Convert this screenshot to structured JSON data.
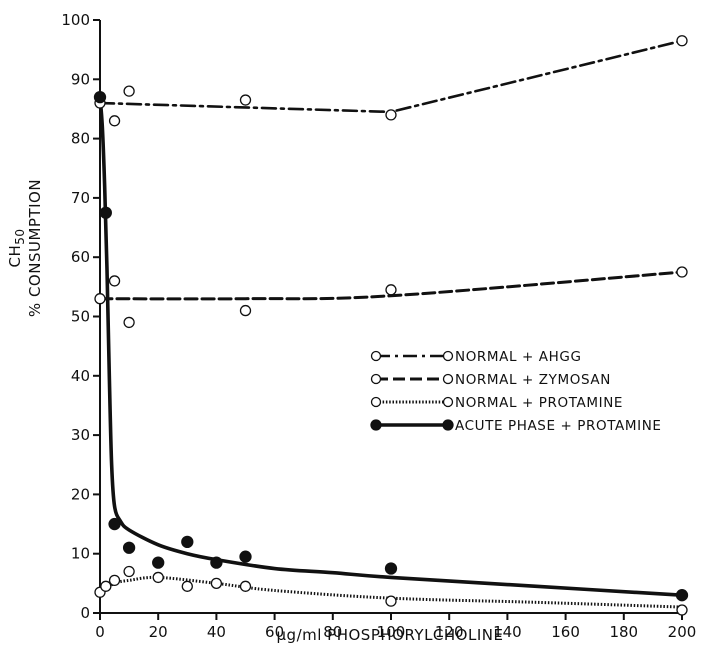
{
  "chart_data": {
    "type": "scatter",
    "xlabel": "μg/ml PHOSPHORYLCHOLINE",
    "ylabel_line1": "CH",
    "ylabel_sub": "50",
    "ylabel_line2": "% CONSUMPTION",
    "xlim": [
      0,
      200
    ],
    "ylim": [
      0,
      100
    ],
    "xticks": [
      0,
      20,
      40,
      60,
      80,
      100,
      120,
      140,
      160,
      180,
      200
    ],
    "yticks": [
      0,
      10,
      20,
      30,
      40,
      50,
      60,
      70,
      80,
      90,
      100
    ],
    "legend_position": "center-right",
    "series": [
      {
        "name": "NORMAL + AHGG",
        "line_style": "dash-dot",
        "marker": "open-circle",
        "points": [
          [
            0,
            86
          ],
          [
            5,
            83
          ],
          [
            10,
            88
          ],
          [
            50,
            86.5
          ],
          [
            100,
            84
          ],
          [
            200,
            96.5
          ]
        ],
        "curve": [
          [
            0,
            86
          ],
          [
            100,
            84.5
          ],
          [
            200,
            96.5
          ]
        ]
      },
      {
        "name": "NORMAL + ZYMOSAN",
        "line_style": "dashed",
        "marker": "open-circle",
        "points": [
          [
            0,
            53
          ],
          [
            5,
            56
          ],
          [
            10,
            49
          ],
          [
            50,
            51
          ],
          [
            100,
            54.5
          ],
          [
            200,
            57.5
          ]
        ],
        "curve": [
          [
            0,
            53
          ],
          [
            50,
            53
          ],
          [
            100,
            53.5
          ],
          [
            200,
            57.5
          ]
        ]
      },
      {
        "name": "NORMAL + PROTAMINE",
        "line_style": "dotted",
        "marker": "open-circle",
        "points": [
          [
            0,
            3.5
          ],
          [
            2,
            4.5
          ],
          [
            5,
            5.5
          ],
          [
            10,
            7
          ],
          [
            20,
            6
          ],
          [
            30,
            4.5
          ],
          [
            40,
            5
          ],
          [
            50,
            4.5
          ],
          [
            100,
            2
          ],
          [
            200,
            0.5
          ]
        ],
        "curve": [
          [
            0,
            3.5
          ],
          [
            5,
            5
          ],
          [
            10,
            5.5
          ],
          [
            20,
            6
          ],
          [
            40,
            5
          ],
          [
            60,
            3.8
          ],
          [
            100,
            2.5
          ],
          [
            150,
            1.8
          ],
          [
            200,
            1
          ]
        ]
      },
      {
        "name": "ACUTE PHASE + PROTAMINE",
        "line_style": "solid",
        "marker": "filled-circle",
        "points": [
          [
            0,
            87
          ],
          [
            2,
            67.5
          ],
          [
            5,
            15
          ],
          [
            10,
            11
          ],
          [
            20,
            8.5
          ],
          [
            30,
            12
          ],
          [
            40,
            8.5
          ],
          [
            50,
            9.5
          ],
          [
            100,
            7.5
          ],
          [
            200,
            3
          ]
        ],
        "curve": [
          [
            0,
            87
          ],
          [
            0.8,
            82
          ],
          [
            1.6,
            72
          ],
          [
            2.4,
            58
          ],
          [
            3.2,
            40
          ],
          [
            4,
            25
          ],
          [
            5,
            18
          ],
          [
            7,
            15.5
          ],
          [
            10,
            14
          ],
          [
            20,
            11.5
          ],
          [
            30,
            10
          ],
          [
            40,
            9
          ],
          [
            60,
            7.5
          ],
          [
            80,
            6.8
          ],
          [
            100,
            6
          ],
          [
            150,
            4.5
          ],
          [
            200,
            3
          ]
        ]
      }
    ]
  },
  "colors": {
    "ink": "#111111",
    "background": "#ffffff"
  }
}
